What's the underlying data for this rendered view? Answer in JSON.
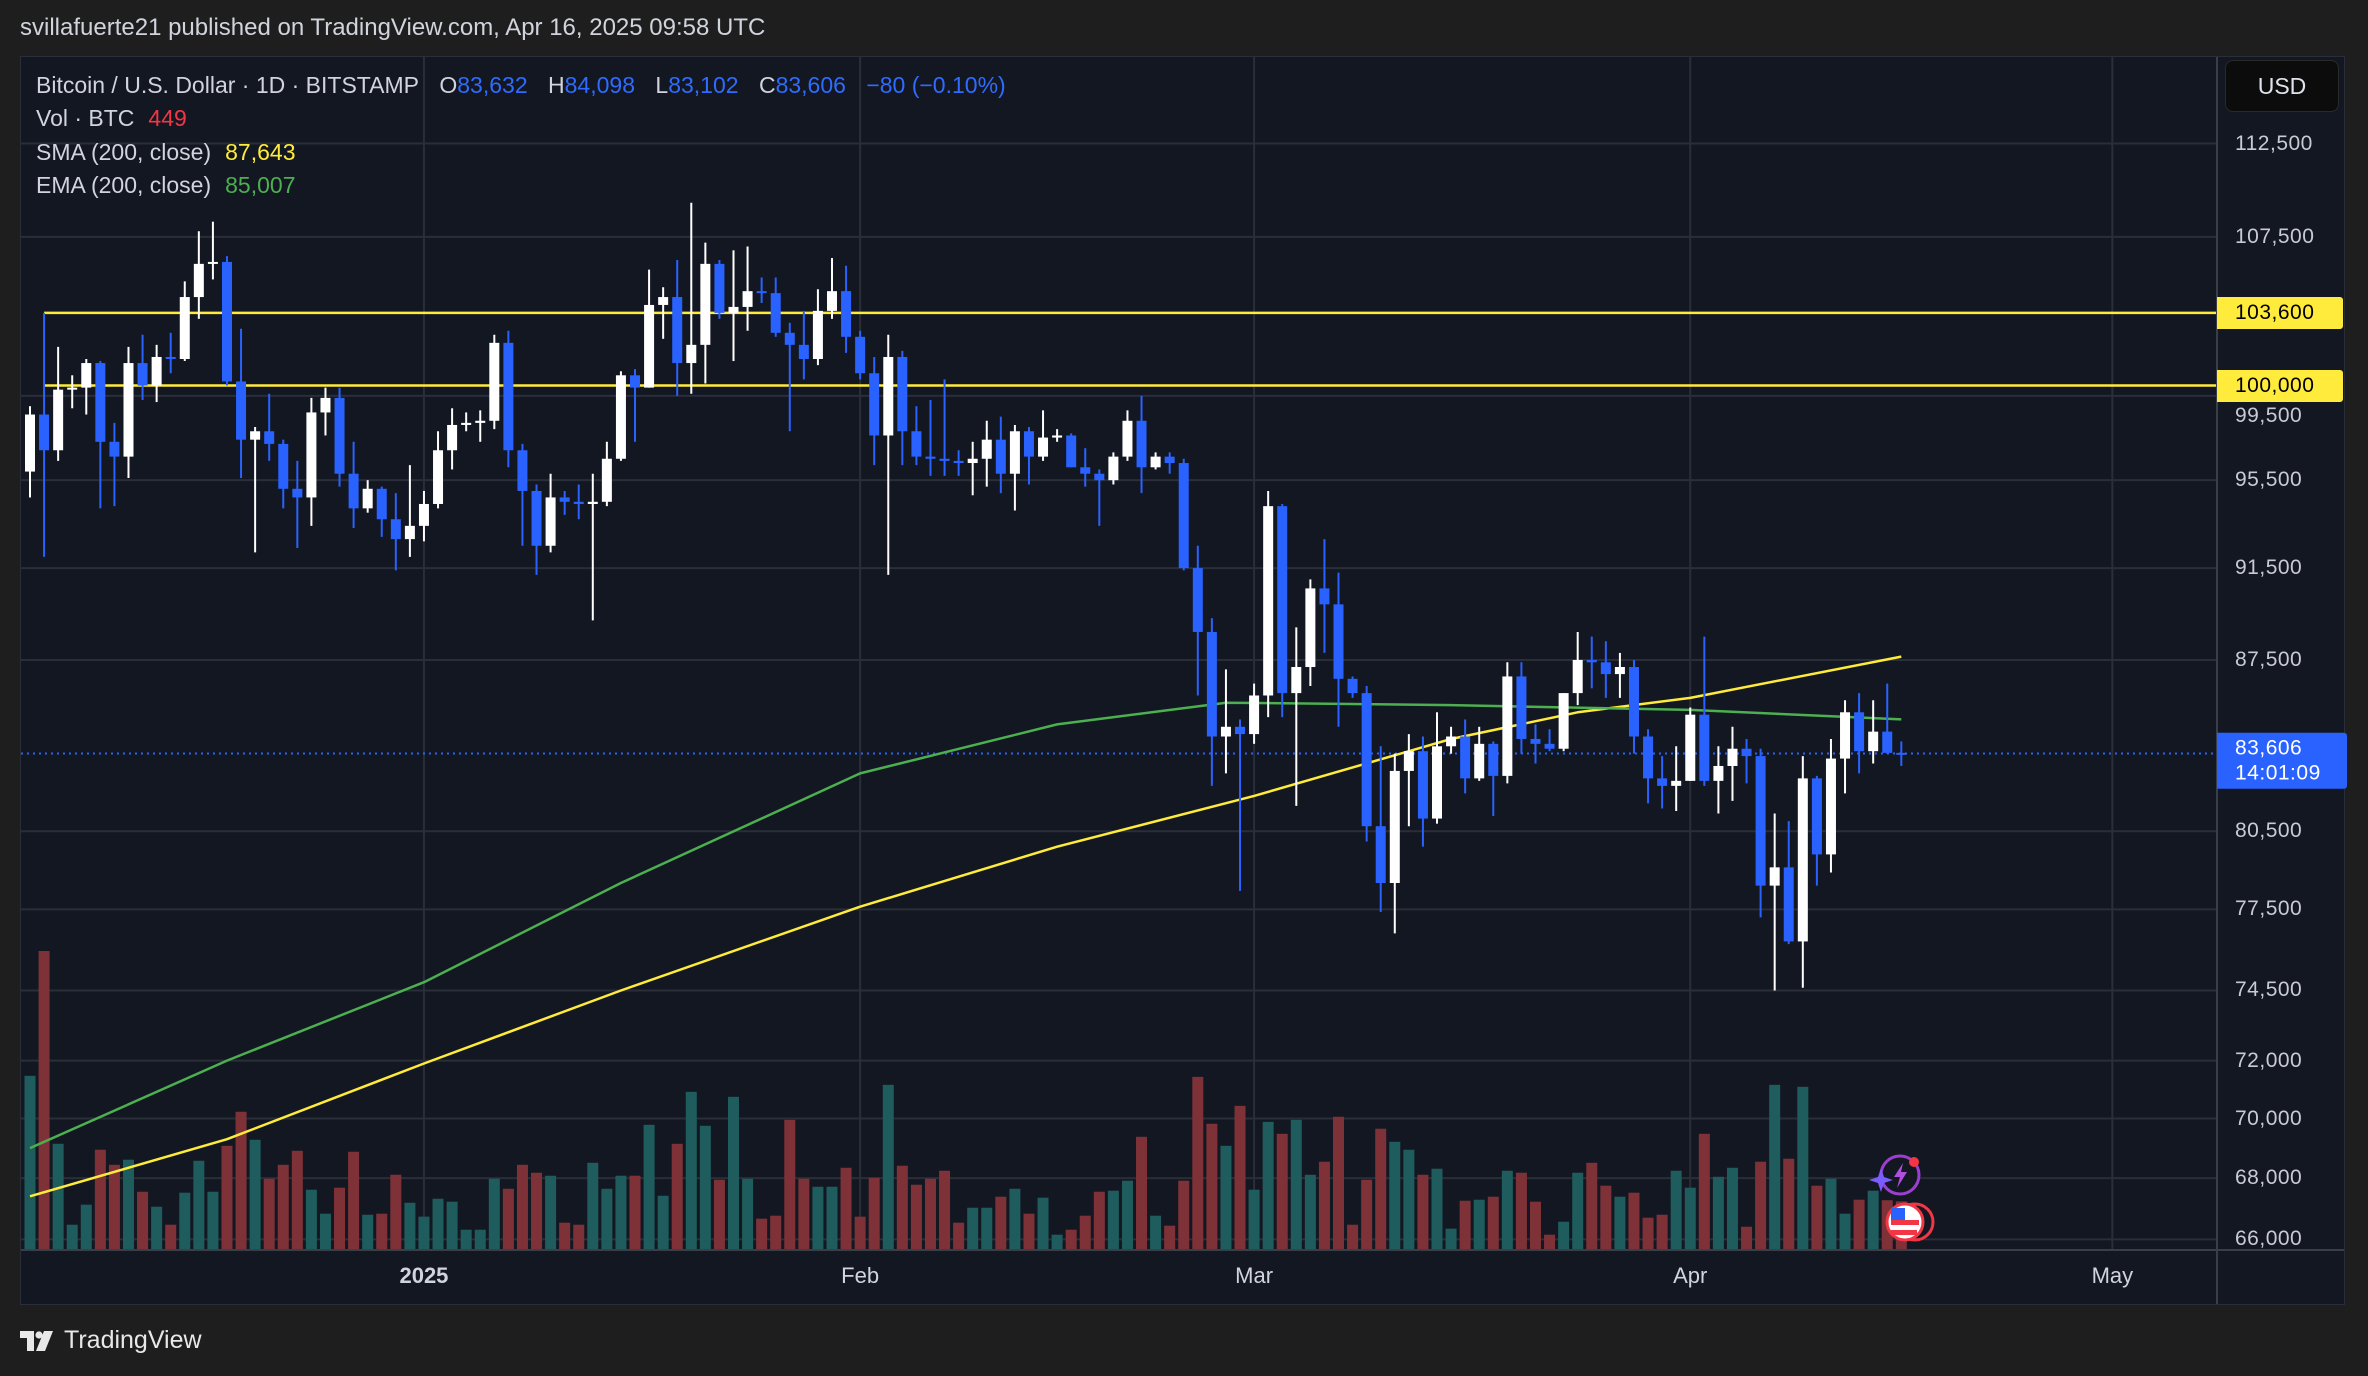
{
  "header": {
    "published": "svillafuerte21 published on TradingView.com, Apr 16, 2025 09:58 UTC"
  },
  "legend": {
    "symbol": "Bitcoin / U.S. Dollar · 1D · BITSTAMP",
    "o_label": "O",
    "o": "83,632",
    "h_label": "H",
    "h": "84,098",
    "l_label": "L",
    "l": "83,102",
    "c_label": "C",
    "c": "83,606",
    "change": "−80 (−0.10%)",
    "vol_label": "Vol · BTC",
    "vol": "449",
    "sma_label": "SMA (200, close)",
    "sma": "87,643",
    "ema_label": "EMA (200, close)",
    "ema": "85,007"
  },
  "price_axis": {
    "currency": "USD",
    "ticks": [
      {
        "label": "112,500",
        "value": 112500
      },
      {
        "label": "107,500",
        "value": 107500
      },
      {
        "label": "99,500",
        "value": 99500
      },
      {
        "label": "95,500",
        "value": 95500
      },
      {
        "label": "91,500",
        "value": 91500
      },
      {
        "label": "87,500",
        "value": 87500
      },
      {
        "label": "80,500",
        "value": 80500
      },
      {
        "label": "77,500",
        "value": 77500
      },
      {
        "label": "74,500",
        "value": 74500
      },
      {
        "label": "72,000",
        "value": 72000
      },
      {
        "label": "70,000",
        "value": 70000
      },
      {
        "label": "68,000",
        "value": 68000
      },
      {
        "label": "66,000",
        "value": 66000
      }
    ],
    "levels": [
      {
        "label": "103,600",
        "value": 103600
      },
      {
        "label": "100,000",
        "value": 100000
      }
    ],
    "last_price": {
      "label": "83,606",
      "countdown": "14:01:09",
      "value": 83606
    }
  },
  "time_axis": {
    "labels": [
      {
        "text": "2025",
        "date": "2025-01-01",
        "bold": true
      },
      {
        "text": "Feb",
        "date": "2025-02-01",
        "bold": false
      },
      {
        "text": "Mar",
        "date": "2025-03-01",
        "bold": false
      },
      {
        "text": "Apr",
        "date": "2025-04-01",
        "bold": false
      },
      {
        "text": "May",
        "date": "2025-05-01",
        "bold": false
      }
    ]
  },
  "markers": [
    {
      "icon": "lightning-event-icon"
    },
    {
      "icon": "us-flag-economic-event-icon"
    }
  ],
  "footer": {
    "logo": "TradingView"
  },
  "colors": {
    "background": "#131722",
    "up_candle": "#ffffff",
    "down_candle": "#2962ff",
    "volume_up": "#1f5c5d",
    "volume_down": "#7e3237",
    "sma": "#ffeb3b",
    "ema": "#4caf50",
    "level_line": "#ffeb3b",
    "last_price": "#2962ff",
    "grid": "#2a2e39"
  },
  "chart_data": {
    "type": "candlestick",
    "title": "Bitcoin / U.S. Dollar · 1D · BITSTAMP",
    "y_scale": "log",
    "ylim": [
      65700,
      117400
    ],
    "xlim": [
      "2024-12-03",
      "2025-05-13"
    ],
    "grid": true,
    "candles_fields": [
      "date",
      "open",
      "high",
      "low",
      "close",
      "volume_btc"
    ],
    "candles": [
      [
        "2024-12-04",
        95900,
        99000,
        94700,
        98600,
        1633
      ],
      [
        "2024-12-05",
        98600,
        103600,
        92000,
        96900,
        2810
      ],
      [
        "2024-12-06",
        96900,
        101900,
        96400,
        99800,
        992
      ],
      [
        "2024-12-07",
        99800,
        100500,
        98900,
        99900,
        229
      ],
      [
        "2024-12-08",
        99900,
        101300,
        98600,
        101100,
        418
      ],
      [
        "2024-12-09",
        101100,
        101200,
        94200,
        97300,
        936
      ],
      [
        "2024-12-10",
        97300,
        98200,
        94300,
        96600,
        794
      ],
      [
        "2024-12-11",
        96600,
        101900,
        95600,
        101100,
        842
      ],
      [
        "2024-12-12",
        101100,
        102500,
        99300,
        100000,
        540
      ],
      [
        "2024-12-13",
        100000,
        102000,
        99200,
        101400,
        399
      ],
      [
        "2024-12-14",
        101400,
        102600,
        100600,
        101300,
        229
      ],
      [
        "2024-12-15",
        101300,
        105200,
        101200,
        104400,
        531
      ],
      [
        "2024-12-16",
        104400,
        107800,
        103300,
        106100,
        832
      ],
      [
        "2024-12-17",
        106100,
        108300,
        105300,
        106200,
        540
      ],
      [
        "2024-12-18",
        106200,
        106500,
        100000,
        100200,
        973
      ],
      [
        "2024-12-19",
        100200,
        102800,
        95600,
        97400,
        1294
      ],
      [
        "2024-12-20",
        97400,
        98000,
        92200,
        97800,
        1030
      ],
      [
        "2024-12-21",
        97800,
        99600,
        96400,
        97200,
        663
      ],
      [
        "2024-12-22",
        97200,
        97400,
        94200,
        95100,
        794
      ],
      [
        "2024-12-23",
        95100,
        96400,
        92400,
        94700,
        926
      ],
      [
        "2024-12-24",
        94700,
        99400,
        93400,
        98700,
        559
      ],
      [
        "2024-12-25",
        98700,
        99900,
        97600,
        99400,
        333
      ],
      [
        "2024-12-26",
        99400,
        99900,
        95200,
        95800,
        578
      ],
      [
        "2024-12-27",
        95800,
        97300,
        93300,
        94200,
        917
      ],
      [
        "2024-12-28",
        94200,
        95500,
        94000,
        95100,
        323
      ],
      [
        "2024-12-29",
        95100,
        95200,
        92900,
        93700,
        333
      ],
      [
        "2024-12-30",
        93700,
        94900,
        91400,
        92800,
        700
      ],
      [
        "2024-12-31",
        92800,
        96200,
        92000,
        93400,
        436
      ],
      [
        "2025-01-01",
        93400,
        95000,
        92700,
        94400,
        305
      ],
      [
        "2025-01-02",
        94400,
        97800,
        94200,
        96900,
        474
      ],
      [
        "2025-01-03",
        96900,
        98900,
        96000,
        98100,
        446
      ],
      [
        "2025-01-04",
        98100,
        98700,
        97800,
        98200,
        182
      ],
      [
        "2025-01-05",
        98200,
        98800,
        97300,
        98300,
        182
      ],
      [
        "2025-01-06",
        98300,
        102500,
        97900,
        102100,
        663
      ],
      [
        "2025-01-07",
        102100,
        102700,
        96100,
        96900,
        568
      ],
      [
        "2025-01-08",
        96900,
        97200,
        92500,
        95000,
        794
      ],
      [
        "2025-01-09",
        95000,
        95300,
        91200,
        92500,
        719
      ],
      [
        "2025-01-10",
        92500,
        95800,
        92200,
        94700,
        691
      ],
      [
        "2025-01-11",
        94700,
        95000,
        93900,
        94500,
        248
      ],
      [
        "2025-01-12",
        94500,
        95300,
        93700,
        94400,
        229
      ],
      [
        "2025-01-13",
        94400,
        95800,
        89200,
        94500,
        813
      ],
      [
        "2025-01-14",
        94500,
        97300,
        94300,
        96500,
        568
      ],
      [
        "2025-01-15",
        96500,
        100700,
        96400,
        100500,
        691
      ],
      [
        "2025-01-16",
        100500,
        100800,
        97300,
        99900,
        691
      ],
      [
        "2025-01-17",
        99900,
        105800,
        99900,
        104000,
        1171
      ],
      [
        "2025-01-18",
        104000,
        104900,
        102300,
        104400,
        502
      ],
      [
        "2025-01-19",
        104400,
        106300,
        99500,
        101100,
        992
      ],
      [
        "2025-01-20",
        101100,
        109300,
        99600,
        102000,
        1482
      ],
      [
        "2025-01-21",
        102000,
        107200,
        100100,
        106100,
        1162
      ],
      [
        "2025-01-22",
        106100,
        106300,
        103300,
        103600,
        653
      ],
      [
        "2025-01-23",
        103600,
        106800,
        101200,
        103900,
        1435
      ],
      [
        "2025-01-24",
        103900,
        107000,
        102700,
        104700,
        663
      ],
      [
        "2025-01-25",
        104700,
        105400,
        104100,
        104600,
        286
      ],
      [
        "2025-01-26",
        104600,
        105400,
        102400,
        102600,
        314
      ],
      [
        "2025-01-27",
        102600,
        103100,
        97800,
        102000,
        1218
      ],
      [
        "2025-01-28",
        102000,
        103700,
        100300,
        101300,
        663
      ],
      [
        "2025-01-29",
        101300,
        104800,
        101000,
        103700,
        587
      ],
      [
        "2025-01-30",
        103700,
        106400,
        103300,
        104700,
        587
      ],
      [
        "2025-01-31",
        104700,
        106000,
        101600,
        102400,
        766
      ],
      [
        "2025-02-01",
        102400,
        102700,
        100300,
        100600,
        305
      ],
      [
        "2025-02-02",
        100600,
        101400,
        96200,
        97600,
        672
      ],
      [
        "2025-02-03",
        97600,
        102500,
        91200,
        101400,
        1548
      ],
      [
        "2025-02-04",
        101400,
        101700,
        96200,
        97800,
        785
      ],
      [
        "2025-02-05",
        97800,
        99000,
        96200,
        96600,
        606
      ],
      [
        "2025-02-06",
        96600,
        99300,
        95700,
        96500,
        663
      ],
      [
        "2025-02-07",
        96500,
        100300,
        95700,
        96400,
        738
      ],
      [
        "2025-02-08",
        96400,
        96900,
        95700,
        96300,
        248
      ],
      [
        "2025-02-09",
        96300,
        97300,
        94800,
        96500,
        389
      ],
      [
        "2025-02-10",
        96500,
        98300,
        95200,
        97400,
        389
      ],
      [
        "2025-02-11",
        97400,
        98500,
        94900,
        95800,
        493
      ],
      [
        "2025-02-12",
        95800,
        98100,
        94100,
        97800,
        568
      ],
      [
        "2025-02-13",
        97800,
        98000,
        95300,
        96600,
        333
      ],
      [
        "2025-02-14",
        96600,
        98800,
        96400,
        97500,
        484
      ],
      [
        "2025-02-15",
        97500,
        97900,
        97300,
        97600,
        135
      ],
      [
        "2025-02-16",
        97600,
        97700,
        96100,
        96100,
        182
      ],
      [
        "2025-02-17",
        96100,
        97000,
        95200,
        95800,
        314
      ],
      [
        "2025-02-18",
        95800,
        96000,
        93400,
        95500,
        540
      ],
      [
        "2025-02-19",
        95500,
        96800,
        95300,
        96600,
        550
      ],
      [
        "2025-02-20",
        96600,
        98800,
        96400,
        98300,
        644
      ],
      [
        "2025-02-21",
        98300,
        99500,
        94900,
        96100,
        1058
      ],
      [
        "2025-02-22",
        96100,
        96800,
        96000,
        96600,
        314
      ],
      [
        "2025-02-23",
        96600,
        96800,
        95800,
        96300,
        220
      ],
      [
        "2025-02-24",
        96300,
        96500,
        91400,
        91500,
        644
      ],
      [
        "2025-02-25",
        91500,
        92500,
        86000,
        88700,
        1623
      ],
      [
        "2025-02-26",
        88700,
        89300,
        82300,
        84300,
        1181
      ],
      [
        "2025-02-27",
        84300,
        87100,
        82800,
        84700,
        973
      ],
      [
        "2025-02-28",
        84700,
        85000,
        78200,
        84400,
        1350
      ],
      [
        "2025-03-01",
        84400,
        86500,
        84000,
        86000,
        559
      ],
      [
        "2025-03-02",
        86000,
        95000,
        85100,
        94300,
        1199
      ],
      [
        "2025-03-03",
        94300,
        94400,
        85100,
        86100,
        1086
      ],
      [
        "2025-03-04",
        86100,
        88900,
        81500,
        87200,
        1218
      ],
      [
        "2025-03-05",
        87200,
        91000,
        86400,
        90600,
        700
      ],
      [
        "2025-03-06",
        90600,
        92800,
        87800,
        89900,
        823
      ],
      [
        "2025-03-07",
        89900,
        91300,
        84700,
        86700,
        1247
      ],
      [
        "2025-03-08",
        86700,
        86800,
        85900,
        86100,
        229
      ],
      [
        "2025-03-09",
        86100,
        86400,
        80100,
        80700,
        653
      ],
      [
        "2025-03-10",
        80700,
        83900,
        77400,
        78500,
        1134
      ],
      [
        "2025-03-11",
        78500,
        83600,
        76600,
        82900,
        1011
      ],
      [
        "2025-03-12",
        82900,
        84400,
        80700,
        83700,
        936
      ],
      [
        "2025-03-13",
        83700,
        84300,
        79900,
        81000,
        700
      ],
      [
        "2025-03-14",
        81000,
        85300,
        80800,
        83900,
        757
      ],
      [
        "2025-03-15",
        83900,
        84700,
        83600,
        84300,
        192
      ],
      [
        "2025-03-16",
        84300,
        85000,
        82000,
        82600,
        455
      ],
      [
        "2025-03-17",
        82600,
        84700,
        82500,
        84000,
        465
      ],
      [
        "2025-03-18",
        84000,
        84100,
        81100,
        82700,
        493
      ],
      [
        "2025-03-19",
        82700,
        87400,
        82400,
        86800,
        738
      ],
      [
        "2025-03-20",
        86800,
        87400,
        83600,
        84200,
        719
      ],
      [
        "2025-03-21",
        84200,
        84800,
        83200,
        84000,
        446
      ],
      [
        "2025-03-22",
        84000,
        84600,
        83700,
        83800,
        135
      ],
      [
        "2025-03-23",
        83800,
        86100,
        83700,
        86100,
        257
      ],
      [
        "2025-03-24",
        86100,
        88700,
        85600,
        87500,
        719
      ],
      [
        "2025-03-25",
        87500,
        88500,
        86300,
        87400,
        813
      ],
      [
        "2025-03-26",
        87400,
        88300,
        85900,
        86900,
        597
      ],
      [
        "2025-03-27",
        86900,
        87800,
        85900,
        87200,
        493
      ],
      [
        "2025-03-28",
        87200,
        87500,
        83600,
        84300,
        531
      ],
      [
        "2025-03-29",
        84300,
        84600,
        81600,
        82600,
        295
      ],
      [
        "2025-03-30",
        82600,
        83500,
        81400,
        82300,
        323
      ],
      [
        "2025-03-31",
        82300,
        83900,
        81300,
        82500,
        738
      ],
      [
        "2025-04-01",
        82500,
        85500,
        82500,
        85200,
        578
      ],
      [
        "2025-04-02",
        85200,
        88500,
        82300,
        82500,
        1086
      ],
      [
        "2025-04-03",
        82500,
        83900,
        81200,
        83100,
        681
      ],
      [
        "2025-04-04",
        83100,
        84700,
        81700,
        83800,
        766
      ],
      [
        "2025-04-05",
        83800,
        84200,
        82400,
        83500,
        210
      ],
      [
        "2025-04-06",
        83500,
        83800,
        77200,
        78400,
        823
      ],
      [
        "2025-04-07",
        78400,
        81200,
        74500,
        79100,
        1548
      ],
      [
        "2025-04-08",
        79100,
        80900,
        76200,
        76300,
        851
      ],
      [
        "2025-04-09",
        76300,
        83500,
        74600,
        82600,
        1529
      ],
      [
        "2025-04-10",
        82600,
        82700,
        78400,
        79600,
        597
      ],
      [
        "2025-04-11",
        79600,
        84200,
        78900,
        83400,
        663
      ],
      [
        "2025-04-12",
        83400,
        85800,
        82000,
        85300,
        333
      ],
      [
        "2025-04-13",
        85300,
        86100,
        82800,
        83700,
        465
      ],
      [
        "2025-04-14",
        83700,
        85800,
        83200,
        84500,
        550
      ],
      [
        "2025-04-15",
        84500,
        86500,
        83600,
        83632,
        460
      ],
      [
        "2025-04-16",
        83632,
        84098,
        83102,
        83606,
        449
      ]
    ],
    "series": [
      {
        "name": "SMA (200, close)",
        "points": [
          [
            "2024-12-04",
            67400
          ],
          [
            "2024-12-18",
            69300
          ],
          [
            "2025-01-01",
            71900
          ],
          [
            "2025-01-15",
            74500
          ],
          [
            "2025-02-01",
            77600
          ],
          [
            "2025-02-15",
            79900
          ],
          [
            "2025-03-01",
            81900
          ],
          [
            "2025-03-15",
            84200
          ],
          [
            "2025-03-24",
            85300
          ],
          [
            "2025-04-01",
            85900
          ],
          [
            "2025-04-16",
            87643
          ]
        ]
      },
      {
        "name": "EMA (200, close)",
        "points": [
          [
            "2024-12-04",
            69000
          ],
          [
            "2024-12-18",
            72000
          ],
          [
            "2025-01-01",
            74800
          ],
          [
            "2025-01-15",
            78500
          ],
          [
            "2025-02-01",
            82800
          ],
          [
            "2025-02-15",
            84800
          ],
          [
            "2025-02-27",
            85700
          ],
          [
            "2025-03-15",
            85600
          ],
          [
            "2025-04-01",
            85400
          ],
          [
            "2025-04-16",
            85007
          ]
        ]
      }
    ],
    "horizontal_levels": [
      103600,
      100000
    ],
    "last_price": 83606
  }
}
